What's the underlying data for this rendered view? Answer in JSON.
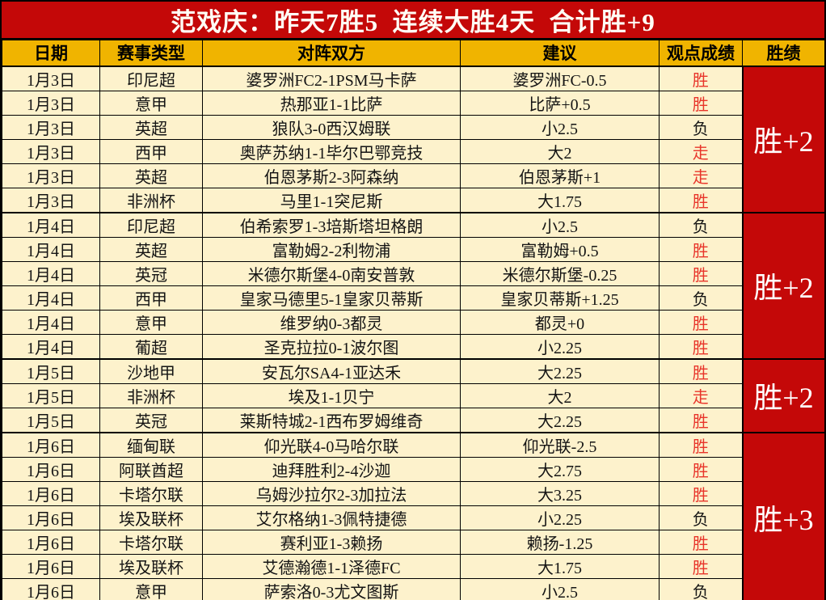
{
  "banner": {
    "title": "范戏庆：昨天7胜5  连续大胜4天  合计胜+9"
  },
  "table": {
    "headers": [
      "日期",
      "赛事类型",
      "对阵双方",
      "建议",
      "观点成绩",
      "胜绩"
    ],
    "rows": [
      {
        "date": "1月3日",
        "league": "印尼超",
        "match": "婆罗洲FC2-1PSM马卡萨",
        "tip": "婆罗洲FC-0.5",
        "result": "胜",
        "result_color": "red"
      },
      {
        "date": "1月3日",
        "league": "意甲",
        "match": "热那亚1-1比萨",
        "tip": "比萨+0.5",
        "result": "胜",
        "result_color": "red"
      },
      {
        "date": "1月3日",
        "league": "英超",
        "match": "狼队3-0西汉姆联",
        "tip": "小2.5",
        "result": "负",
        "result_color": "black"
      },
      {
        "date": "1月3日",
        "league": "西甲",
        "match": "奥萨苏纳1-1毕尔巴鄂竞技",
        "tip": "大2",
        "result": "走",
        "result_color": "red"
      },
      {
        "date": "1月3日",
        "league": "英超",
        "match": "伯恩茅斯2-3阿森纳",
        "tip": "伯恩茅斯+1",
        "result": "走",
        "result_color": "red"
      },
      {
        "date": "1月3日",
        "league": "非洲杯",
        "match": "马里1-1突尼斯",
        "tip": "大1.75",
        "result": "胜",
        "result_color": "red"
      },
      {
        "date": "1月4日",
        "league": "印尼超",
        "match": "伯希索罗1-3培斯塔坦格朗",
        "tip": "小2.5",
        "result": "负",
        "result_color": "black"
      },
      {
        "date": "1月4日",
        "league": "英超",
        "match": "富勒姆2-2利物浦",
        "tip": "富勒姆+0.5",
        "result": "胜",
        "result_color": "red"
      },
      {
        "date": "1月4日",
        "league": "英冠",
        "match": "米德尔斯堡4-0南安普敦",
        "tip": "米德尔斯堡-0.25",
        "result": "胜",
        "result_color": "red"
      },
      {
        "date": "1月4日",
        "league": "西甲",
        "match": "皇家马德里5-1皇家贝蒂斯",
        "tip": "皇家贝蒂斯+1.25",
        "result": "负",
        "result_color": "black"
      },
      {
        "date": "1月4日",
        "league": "意甲",
        "match": "维罗纳0-3都灵",
        "tip": "都灵+0",
        "result": "胜",
        "result_color": "red"
      },
      {
        "date": "1月4日",
        "league": "葡超",
        "match": "圣克拉拉0-1波尔图",
        "tip": "小2.25",
        "result": "胜",
        "result_color": "red"
      },
      {
        "date": "1月5日",
        "league": "沙地甲",
        "match": "安瓦尔SA4-1亚达禾",
        "tip": "大2.25",
        "result": "胜",
        "result_color": "red"
      },
      {
        "date": "1月5日",
        "league": "非洲杯",
        "match": "埃及1-1贝宁",
        "tip": "大2",
        "result": "走",
        "result_color": "red"
      },
      {
        "date": "1月5日",
        "league": "英冠",
        "match": "莱斯特城2-1西布罗姆维奇",
        "tip": "大2.25",
        "result": "胜",
        "result_color": "red"
      },
      {
        "date": "1月6日",
        "league": "缅甸联",
        "match": "仰光联4-0马哈尔联",
        "tip": "仰光联-2.5",
        "result": "胜",
        "result_color": "red"
      },
      {
        "date": "1月6日",
        "league": "阿联酋超",
        "match": "迪拜胜利2-4沙迦",
        "tip": "大2.75",
        "result": "胜",
        "result_color": "red"
      },
      {
        "date": "1月6日",
        "league": "卡塔尔联",
        "match": "乌姆沙拉尔2-3加拉法",
        "tip": "大3.25",
        "result": "胜",
        "result_color": "red"
      },
      {
        "date": "1月6日",
        "league": "埃及联杯",
        "match": "艾尔格纳1-3佩特捷德",
        "tip": "小2.25",
        "result": "负",
        "result_color": "black"
      },
      {
        "date": "1月6日",
        "league": "卡塔尔联",
        "match": "赛利亚1-3赖扬",
        "tip": "赖扬-1.25",
        "result": "胜",
        "result_color": "red"
      },
      {
        "date": "1月6日",
        "league": "埃及联杯",
        "match": "艾德瀚德1-1泽德FC",
        "tip": "大1.75",
        "result": "胜",
        "result_color": "red"
      },
      {
        "date": "1月6日",
        "league": "意甲",
        "match": "萨索洛0-3尤文图斯",
        "tip": "小2.5",
        "result": "负",
        "result_color": "black"
      }
    ],
    "groups": [
      {
        "label": "胜+2",
        "date": "1月3日",
        "rowspan": 6
      },
      {
        "label": "胜+2",
        "date": "1月4日",
        "rowspan": 6
      },
      {
        "label": "胜+2",
        "date": "1月5日",
        "rowspan": 3
      },
      {
        "label": "胜+3",
        "date": "1月6日",
        "rowspan": 7
      }
    ]
  },
  "colors": {
    "banner_bg": "#c40808",
    "banner_text": "#fffdf5",
    "header_bg": "#f0b400",
    "header_text": "#000000",
    "body_bg": "#fdf2cc",
    "win_text": "#e8352a",
    "loss_text": "#141414",
    "group_bg": "#c40808",
    "group_text": "#ffffff",
    "border": "#000000"
  }
}
